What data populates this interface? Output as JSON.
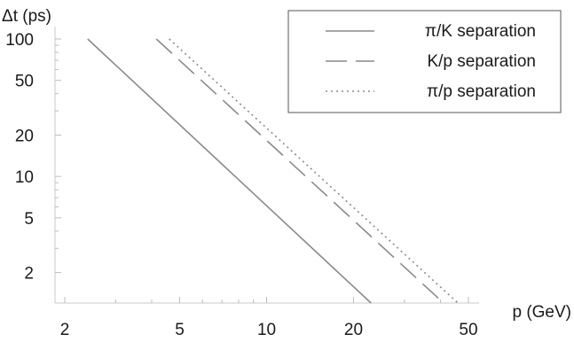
{
  "chart_data": {
    "type": "line",
    "title": "",
    "xlabel": "p (GeV)",
    "ylabel": "Δt (ps)",
    "x_scale": "log",
    "y_scale": "log",
    "xlim": [
      1.85,
      50
    ],
    "ylim": [
      1.2,
      100
    ],
    "x_ticks": [
      2,
      5,
      10,
      20,
      50
    ],
    "y_ticks": [
      2,
      5,
      10,
      20,
      50,
      100
    ],
    "grid": false,
    "legend_position": "top-right",
    "series": [
      {
        "name": "π/K separation",
        "style": "solid",
        "color": "#8a8a8a",
        "x": [
          2.4,
          23.0
        ],
        "y": [
          100,
          1.2
        ]
      },
      {
        "name": "K/p separation",
        "style": "dashed",
        "color": "#8a8a8a",
        "x": [
          4.15,
          41.0
        ],
        "y": [
          100,
          1.2
        ]
      },
      {
        "name": "π/p separation",
        "style": "dotted",
        "color": "#8a8a8a",
        "x": [
          4.6,
          46.0
        ],
        "y": [
          100,
          1.2
        ]
      }
    ]
  }
}
